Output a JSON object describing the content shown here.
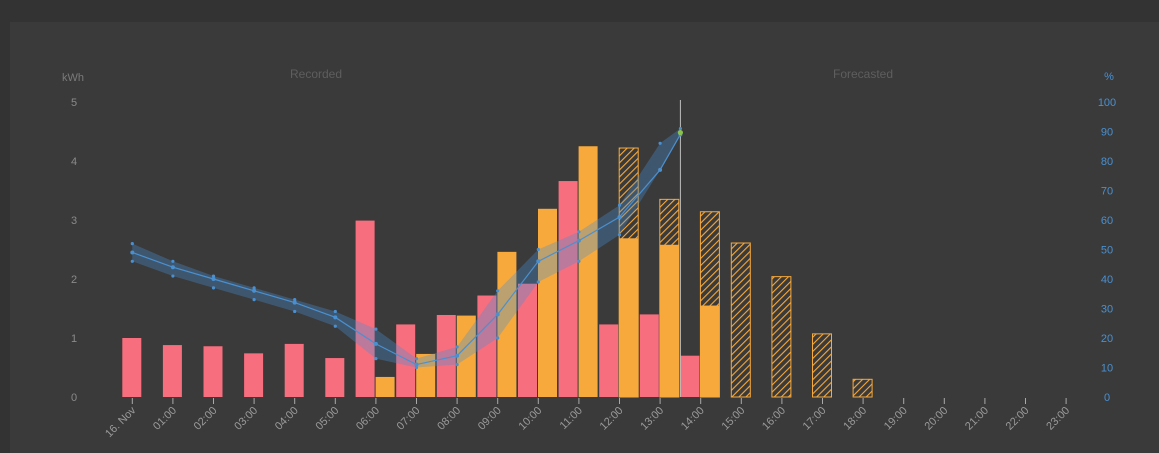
{
  "chart_data": {
    "type": "bar",
    "section_labels": {
      "recorded": "Recorded",
      "forecasted": "Forecasted"
    },
    "left_axis": {
      "unit": "kWh",
      "range": [
        0,
        5
      ],
      "ticks": [
        "0",
        "1",
        "2",
        "3",
        "4",
        "5"
      ]
    },
    "right_axis": {
      "unit": "%",
      "range": [
        0,
        100
      ],
      "ticks": [
        "0",
        "10",
        "20",
        "30",
        "40",
        "50",
        "60",
        "70",
        "80",
        "90",
        "100"
      ]
    },
    "categories": [
      "16. Nov",
      "01:00",
      "02:00",
      "03:00",
      "04:00",
      "05:00",
      "06:00",
      "07:00",
      "08:00",
      "09:00",
      "10:00",
      "11:00",
      "12:00",
      "13:00",
      "14:00",
      "15:00",
      "16:00",
      "17:00",
      "18:00",
      "19:00",
      "20:00",
      "21:00",
      "22:00",
      "23:00"
    ],
    "now_index": 14,
    "grid": false,
    "series": [
      {
        "color": "#f76e7e",
        "values": [
          1.0,
          0.88,
          0.86,
          0.74,
          0.9,
          0.66,
          2.99,
          1.23,
          1.39,
          1.72,
          1.92,
          3.66,
          1.23,
          1.4,
          0.7,
          null,
          null,
          null,
          null,
          null,
          null,
          null,
          null,
          null
        ]
      },
      {
        "color": "#f7a93c",
        "values": [
          null,
          null,
          null,
          null,
          null,
          null,
          0.34,
          0.73,
          1.38,
          2.46,
          3.19,
          4.25,
          2.69,
          2.58,
          1.55,
          null,
          null,
          null,
          null,
          null,
          null,
          null,
          null,
          null
        ]
      },
      {
        "color": "#f7a93c",
        "pattern": "hatched",
        "values": [
          null,
          null,
          null,
          null,
          null,
          null,
          null,
          null,
          null,
          null,
          null,
          null,
          4.22,
          3.35,
          3.14,
          2.61,
          2.04,
          1.07,
          0.3,
          0,
          0,
          0,
          0,
          0
        ]
      },
      {
        "color": "#4a90d0",
        "axis": "right",
        "values": [
          49,
          44,
          40,
          36,
          32,
          27,
          18,
          11,
          14,
          28,
          46,
          53,
          61,
          77,
          89,
          null,
          null,
          null,
          null,
          null,
          null,
          null,
          null,
          null
        ],
        "band_low": [
          46,
          41,
          37,
          33,
          29,
          24,
          13,
          10,
          11,
          20,
          39,
          46,
          55,
          null,
          null
        ],
        "band_high": [
          52,
          46,
          41,
          37,
          33,
          29,
          23,
          13,
          17,
          36,
          50,
          56,
          65,
          86,
          91
        ]
      }
    ],
    "highlight_point": {
      "index": 14,
      "value": 91,
      "color": "#8bc34a"
    }
  }
}
